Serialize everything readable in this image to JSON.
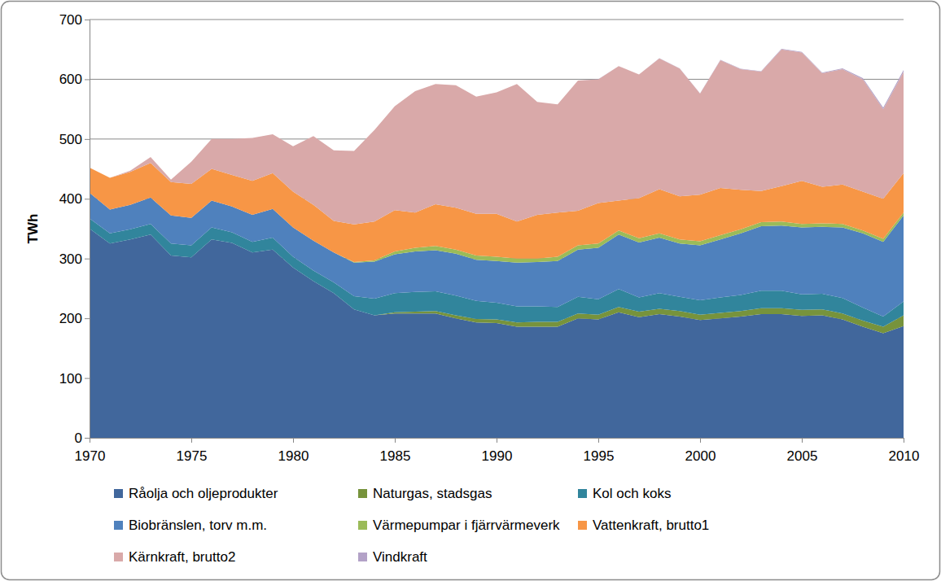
{
  "chart_data": {
    "type": "area",
    "stacked": true,
    "grid": true,
    "legend": "bottom",
    "y_label": "TWh",
    "x": [
      1970,
      1971,
      1972,
      1973,
      1974,
      1975,
      1976,
      1977,
      1978,
      1979,
      1980,
      1981,
      1982,
      1983,
      1984,
      1985,
      1986,
      1987,
      1988,
      1989,
      1990,
      1991,
      1992,
      1993,
      1994,
      1995,
      1996,
      1997,
      1998,
      1999,
      2000,
      2001,
      2002,
      2003,
      2004,
      2005,
      2006,
      2007,
      2008,
      2009,
      2010
    ],
    "xlim": [
      1970,
      2010
    ],
    "xticks": [
      1970,
      1975,
      1980,
      1985,
      1990,
      1995,
      2000,
      2005,
      2010
    ],
    "ylim": [
      0,
      700
    ],
    "yticks": [
      0,
      100,
      200,
      300,
      400,
      500,
      600,
      700
    ],
    "series": [
      {
        "name": "Råolja och oljeprodukter",
        "color": "#41679c",
        "values": [
          350,
          325,
          332,
          340,
          305,
          302,
          332,
          326,
          310,
          315,
          285,
          262,
          242,
          215,
          205,
          208,
          208,
          208,
          200,
          193,
          192,
          186,
          186,
          186,
          200,
          198,
          210,
          202,
          207,
          203,
          197,
          200,
          203,
          207,
          207,
          204,
          205,
          198,
          186,
          175,
          187
        ]
      },
      {
        "name": "Naturgas, stadsgas",
        "color": "#77933c",
        "values": [
          0,
          0,
          0,
          0,
          0,
          0,
          0,
          0,
          0,
          0,
          0,
          0,
          0,
          0,
          0,
          2,
          3,
          4,
          5,
          6,
          6,
          7,
          8,
          8,
          8,
          8,
          9,
          9,
          9,
          9,
          9,
          9,
          9,
          10,
          10,
          10,
          10,
          10,
          10,
          11,
          18
        ]
      },
      {
        "name": "Kol och koks",
        "color": "#31859c",
        "values": [
          17,
          17,
          17,
          18,
          20,
          20,
          20,
          18,
          18,
          20,
          18,
          18,
          18,
          22,
          28,
          32,
          33,
          33,
          33,
          30,
          28,
          27,
          26,
          25,
          28,
          26,
          30,
          24,
          26,
          24,
          24,
          26,
          27,
          29,
          29,
          26,
          26,
          26,
          22,
          17,
          23
        ]
      },
      {
        "name": "Biobränslen, torv m.m.",
        "color": "#4f81bd",
        "values": [
          43,
          40,
          41,
          44,
          47,
          46,
          45,
          43,
          45,
          48,
          49,
          50,
          50,
          56,
          62,
          65,
          68,
          69,
          70,
          69,
          70,
          73,
          74,
          77,
          79,
          86,
          91,
          92,
          93,
          89,
          92,
          97,
          103,
          108,
          109,
          112,
          112,
          118,
          124,
          125,
          144
        ]
      },
      {
        "name": "Värmepumpar i fjärrvärmeverk",
        "color": "#9bbb59",
        "values": [
          0,
          0,
          0,
          0,
          0,
          0,
          0,
          0,
          0,
          0,
          0,
          0,
          0,
          1,
          2,
          5,
          6,
          7,
          7,
          7,
          7,
          7,
          6,
          7,
          7,
          7,
          7,
          7,
          7,
          7,
          7,
          7,
          7,
          7,
          7,
          6,
          6,
          6,
          5,
          5,
          5
        ]
      },
      {
        "name": "Vattenkraft, brutto1",
        "color": "#f79646",
        "values": [
          42,
          53,
          55,
          58,
          56,
          57,
          53,
          53,
          57,
          60,
          60,
          60,
          53,
          63,
          65,
          69,
          59,
          70,
          70,
          70,
          72,
          62,
          73,
          74,
          58,
          68,
          50,
          67,
          74,
          72,
          78,
          79,
          66,
          52,
          59,
          72,
          61,
          66,
          65,
          67,
          66
        ]
      },
      {
        "name": "Kärnkraft, brutto2",
        "color": "#d9a9a9",
        "values": [
          0,
          0,
          2,
          10,
          4,
          37,
          50,
          60,
          72,
          65,
          76,
          115,
          118,
          123,
          153,
          174,
          203,
          201,
          205,
          196,
          203,
          230,
          189,
          181,
          218,
          207,
          225,
          207,
          219,
          214,
          169,
          214,
          202,
          200,
          229,
          215,
          190,
          193,
          188,
          150,
          169
        ]
      },
      {
        "name": "Vindkraft",
        "color": "#b3a2c7",
        "values": [
          0,
          0,
          0,
          0,
          0,
          0,
          0,
          0,
          0,
          0,
          0,
          0,
          0,
          0,
          0,
          0,
          0,
          0,
          0,
          0,
          0,
          0,
          0,
          0,
          0,
          0.1,
          0.1,
          0.2,
          0.3,
          0.4,
          0.5,
          0.5,
          0.6,
          0.6,
          0.9,
          1,
          1,
          1.4,
          2,
          2.5,
          3.5
        ]
      }
    ]
  }
}
